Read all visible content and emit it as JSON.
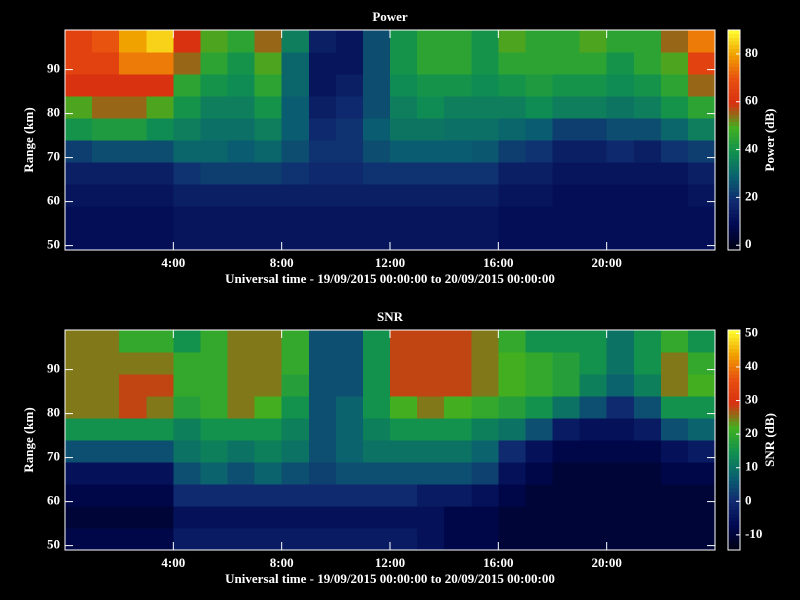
{
  "chart_data": [
    {
      "type": "heatmap",
      "title": "Power",
      "xlabel": "Universal time - 19/09/2015 00:00:00 to 20/09/2015 00:00:00",
      "ylabel": "Range (km)",
      "colorbar_label": "Power (dB)",
      "x": [
        0.5,
        1.5,
        2.5,
        3.5,
        4.5,
        5.5,
        6.5,
        7.5,
        8.5,
        9.5,
        10.5,
        11.5,
        12.5,
        13.5,
        14.5,
        15.5,
        16.5,
        17.5,
        18.5,
        19.5,
        20.5,
        21.5,
        22.5,
        23.5
      ],
      "y": [
        51.5,
        56.5,
        61.5,
        66.5,
        71.5,
        76.5,
        81.5,
        86.5,
        91.5,
        96.5
      ],
      "z": [
        [
          10,
          10,
          10,
          10,
          12,
          12,
          12,
          12,
          12,
          12,
          12,
          12,
          12,
          12,
          12,
          12,
          10,
          10,
          10,
          10,
          10,
          10,
          10,
          10
        ],
        [
          10,
          10,
          10,
          10,
          12,
          12,
          12,
          12,
          12,
          12,
          12,
          12,
          12,
          12,
          12,
          12,
          10,
          10,
          10,
          10,
          10,
          10,
          10,
          10
        ],
        [
          12,
          12,
          12,
          12,
          15,
          15,
          15,
          15,
          15,
          15,
          15,
          15,
          15,
          15,
          15,
          15,
          12,
          12,
          10,
          10,
          10,
          10,
          10,
          12
        ],
        [
          15,
          15,
          15,
          15,
          20,
          22,
          22,
          22,
          20,
          18,
          18,
          20,
          20,
          20,
          20,
          20,
          15,
          15,
          12,
          12,
          12,
          12,
          12,
          15
        ],
        [
          22,
          25,
          25,
          25,
          30,
          30,
          28,
          30,
          25,
          20,
          20,
          25,
          28,
          28,
          28,
          27,
          22,
          20,
          15,
          15,
          18,
          15,
          20,
          22
        ],
        [
          40,
          42,
          42,
          38,
          35,
          32,
          32,
          35,
          28,
          18,
          20,
          28,
          33,
          33,
          32,
          32,
          30,
          28,
          22,
          22,
          25,
          25,
          30,
          35
        ],
        [
          50,
          55,
          55,
          50,
          40,
          35,
          35,
          40,
          28,
          15,
          18,
          25,
          35,
          38,
          35,
          35,
          35,
          38,
          35,
          35,
          33,
          35,
          40,
          45
        ],
        [
          60,
          60,
          60,
          60,
          45,
          40,
          38,
          45,
          30,
          12,
          15,
          25,
          38,
          40,
          40,
          38,
          40,
          42,
          40,
          40,
          38,
          40,
          45,
          55
        ],
        [
          65,
          65,
          75,
          75,
          55,
          45,
          40,
          50,
          30,
          12,
          12,
          25,
          40,
          45,
          45,
          40,
          45,
          45,
          45,
          45,
          40,
          45,
          50,
          65
        ],
        [
          65,
          70,
          80,
          85,
          60,
          50,
          45,
          55,
          35,
          15,
          12,
          25,
          40,
          45,
          45,
          40,
          50,
          45,
          45,
          50,
          45,
          45,
          55,
          75
        ]
      ],
      "xlim": [
        0,
        24
      ],
      "ylim": [
        49,
        99
      ],
      "xticks": [
        {
          "value": 4,
          "label": "4:00"
        },
        {
          "value": 8,
          "label": "8:00"
        },
        {
          "value": 12,
          "label": "12:00"
        },
        {
          "value": 16,
          "label": "16:00"
        },
        {
          "value": 20,
          "label": "20:00"
        }
      ],
      "yticks": [
        50,
        60,
        70,
        80,
        90
      ],
      "zlim": [
        -2,
        90
      ],
      "zticks": [
        0,
        20,
        40,
        60,
        80
      ],
      "colorscale": [
        "#000010",
        "#000850",
        "#102a70",
        "#0a6070",
        "#109050",
        "#40b020",
        "#d83010",
        "#e85010",
        "#f0a000",
        "#ffff30"
      ]
    },
    {
      "type": "heatmap",
      "title": "SNR",
      "xlabel": "Universal time - 19/09/2015 00:00:00 to 20/09/2015 00:00:00",
      "ylabel": "Range (km)",
      "colorbar_label": "SNR (dB)",
      "x": [
        0.5,
        1.5,
        2.5,
        3.5,
        4.5,
        5.5,
        6.5,
        7.5,
        8.5,
        9.5,
        10.5,
        11.5,
        12.5,
        13.5,
        14.5,
        15.5,
        16.5,
        17.5,
        18.5,
        19.5,
        20.5,
        21.5,
        22.5,
        23.5
      ],
      "y": [
        51.5,
        56.5,
        61.5,
        66.5,
        71.5,
        76.5,
        81.5,
        86.5,
        91.5,
        96.5
      ],
      "z": [
        [
          -8,
          -8,
          -8,
          -8,
          -3,
          -3,
          -3,
          -3,
          -3,
          -3,
          -3,
          -3,
          -3,
          -5,
          -8,
          -8,
          -10,
          -10,
          -10,
          -10,
          -10,
          -10,
          -10,
          -10
        ],
        [
          -10,
          -10,
          -10,
          -10,
          -5,
          -5,
          -5,
          -5,
          -5,
          -5,
          -5,
          -5,
          -5,
          -5,
          -8,
          -8,
          -10,
          -10,
          -10,
          -10,
          -10,
          -10,
          -10,
          -10
        ],
        [
          -8,
          -8,
          -8,
          -8,
          0,
          0,
          0,
          0,
          0,
          0,
          0,
          0,
          0,
          -3,
          -3,
          -5,
          -8,
          -10,
          -10,
          -10,
          -10,
          -10,
          -10,
          -10
        ],
        [
          -5,
          -5,
          -5,
          -5,
          5,
          8,
          5,
          8,
          5,
          3,
          5,
          5,
          5,
          5,
          5,
          3,
          -5,
          -8,
          -10,
          -10,
          -10,
          -10,
          -8,
          -8
        ],
        [
          5,
          5,
          5,
          5,
          10,
          12,
          10,
          12,
          10,
          5,
          8,
          10,
          10,
          10,
          10,
          8,
          0,
          -5,
          -8,
          -8,
          -8,
          -8,
          -5,
          -3
        ],
        [
          15,
          15,
          15,
          15,
          12,
          15,
          15,
          15,
          12,
          5,
          8,
          12,
          15,
          15,
          15,
          12,
          10,
          5,
          -3,
          -5,
          -5,
          -3,
          5,
          8
        ],
        [
          25,
          25,
          28,
          25,
          18,
          20,
          25,
          22,
          15,
          5,
          8,
          15,
          22,
          25,
          22,
          20,
          18,
          15,
          10,
          5,
          0,
          5,
          15,
          15
        ],
        [
          25,
          25,
          28,
          28,
          20,
          20,
          25,
          25,
          18,
          5,
          5,
          15,
          28,
          28,
          28,
          25,
          22,
          20,
          18,
          12,
          8,
          12,
          25,
          22
        ],
        [
          25,
          25,
          25,
          25,
          20,
          20,
          25,
          25,
          20,
          5,
          5,
          15,
          28,
          28,
          28,
          25,
          22,
          20,
          18,
          15,
          10,
          15,
          25,
          20
        ],
        [
          25,
          25,
          20,
          20,
          15,
          20,
          25,
          25,
          20,
          5,
          5,
          15,
          28,
          28,
          28,
          25,
          20,
          15,
          15,
          15,
          10,
          15,
          20,
          15
        ]
      ],
      "xlim": [
        0,
        24
      ],
      "ylim": [
        49,
        99
      ],
      "xticks": [
        {
          "value": 4,
          "label": "4:00"
        },
        {
          "value": 8,
          "label": "8:00"
        },
        {
          "value": 12,
          "label": "12:00"
        },
        {
          "value": 16,
          "label": "16:00"
        },
        {
          "value": 20,
          "label": "20:00"
        }
      ],
      "yticks": [
        50,
        60,
        70,
        80,
        90
      ],
      "zlim": [
        -14.5,
        51
      ],
      "zticks": [
        -10,
        0,
        10,
        20,
        30,
        40,
        50
      ],
      "colorscale": [
        "#000010",
        "#000850",
        "#102a70",
        "#0a6070",
        "#109050",
        "#40b020",
        "#d83010",
        "#e85010",
        "#f0a000",
        "#ffff30"
      ]
    }
  ]
}
